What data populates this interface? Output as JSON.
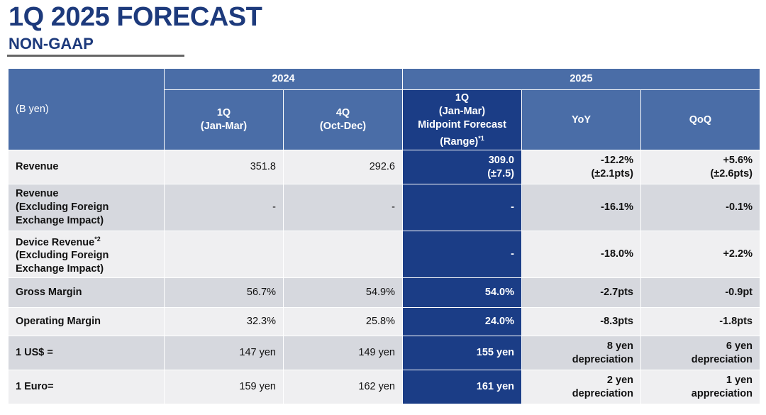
{
  "header": {
    "title": "1Q 2025 FORECAST",
    "subtitle": "NON-GAAP"
  },
  "table": {
    "unit_label": "(B yen)",
    "group_2024": "2024",
    "group_2025": "2025",
    "col_1q_2024": [
      "1Q",
      "(Jan-Mar)"
    ],
    "col_4q_2024": [
      "4Q",
      "(Oct-Dec)"
    ],
    "col_forecast": [
      "1Q",
      "(Jan-Mar)",
      "Midpoint Forecast",
      "(Range)"
    ],
    "col_forecast_note": "*1",
    "col_yoy": "YoY",
    "col_qoq": "QoQ",
    "rows": [
      {
        "label": [
          "Revenue"
        ],
        "q1_2024": "351.8",
        "q4_2024": "292.6",
        "forecast": [
          "309.0",
          "(±7.5)"
        ],
        "yoy": [
          "-12.2%",
          "(±2.1pts)"
        ],
        "qoq": [
          "+5.6%",
          "(±2.6pts)"
        ]
      },
      {
        "label": [
          "Revenue",
          "(Excluding Foreign",
          "Exchange Impact)"
        ],
        "q1_2024": "-",
        "q4_2024": "-",
        "forecast": [
          "-"
        ],
        "yoy": [
          "-16.1%"
        ],
        "qoq": [
          "-0.1%"
        ]
      },
      {
        "label": [
          "Device Revenue",
          "(Excluding Foreign",
          "Exchange Impact)"
        ],
        "label_note": "*2",
        "q1_2024": "",
        "q4_2024": "",
        "forecast": [
          "-"
        ],
        "yoy": [
          "-18.0%"
        ],
        "qoq": [
          "+2.2%"
        ]
      },
      {
        "label": [
          "Gross Margin"
        ],
        "q1_2024": "56.7%",
        "q4_2024": "54.9%",
        "forecast": [
          "54.0%"
        ],
        "yoy": [
          "-2.7pts"
        ],
        "qoq": [
          "-0.9pt"
        ]
      },
      {
        "label": [
          "Operating Margin"
        ],
        "q1_2024": "32.3%",
        "q4_2024": "25.8%",
        "forecast": [
          "24.0%"
        ],
        "yoy": [
          "-8.3pts"
        ],
        "qoq": [
          "-1.8pts"
        ]
      },
      {
        "label": [
          "1 US$ ="
        ],
        "q1_2024": "147 yen",
        "q4_2024": "149 yen",
        "forecast": [
          "155 yen"
        ],
        "yoy": [
          "8 yen",
          "depreciation"
        ],
        "qoq": [
          "6 yen",
          "depreciation"
        ]
      },
      {
        "label": [
          "1 Euro="
        ],
        "q1_2024": "159 yen",
        "q4_2024": "162 yen",
        "forecast": [
          "161 yen"
        ],
        "yoy": [
          "2 yen",
          "depreciation"
        ],
        "qoq": [
          "1 yen",
          "appreciation"
        ]
      }
    ]
  }
}
